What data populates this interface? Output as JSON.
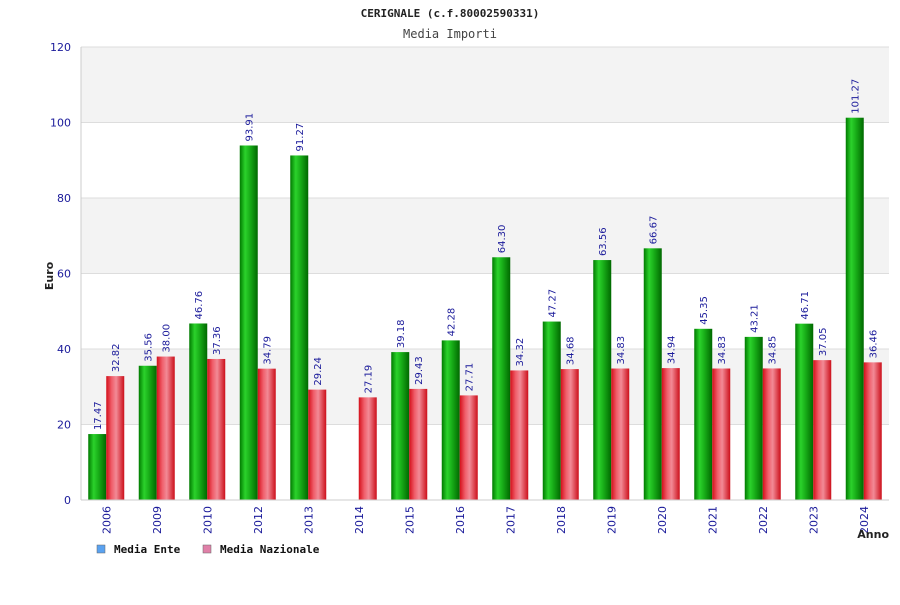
{
  "chart_data": {
    "type": "bar",
    "title": "CERIGNALE (c.f.80002590331)",
    "subtitle": "Media Importi",
    "xlabel": "Anno",
    "ylabel": "Euro",
    "ylim": [
      0,
      120
    ],
    "yticks": [
      0,
      20,
      40,
      60,
      80,
      100,
      120
    ],
    "grid": true,
    "legend_position": "bottom-left",
    "categories": [
      "2006",
      "2009",
      "2010",
      "2012",
      "2013",
      "2014",
      "2015",
      "2016",
      "2017",
      "2018",
      "2019",
      "2020",
      "2021",
      "2022",
      "2023",
      "2024"
    ],
    "series": [
      {
        "name": "Media Ente",
        "legend_color": "#5aa2f0",
        "bar_color": "#16b316",
        "values": [
          17.47,
          35.56,
          46.76,
          93.91,
          91.27,
          null,
          39.18,
          42.28,
          64.3,
          47.27,
          63.56,
          66.67,
          45.35,
          43.21,
          46.71,
          101.27
        ],
        "labels": [
          "17.47",
          "35.56",
          "46.76",
          "93.91",
          "91.27",
          null,
          "39.18",
          "42.28",
          "64.30",
          "47.27",
          "63.56",
          "66.67",
          "45.35",
          "43.21",
          "46.71",
          "101.27"
        ]
      },
      {
        "name": "Media Nazionale",
        "legend_color": "#e080a8",
        "bar_color": "#e0202c",
        "values": [
          32.82,
          38.0,
          37.36,
          34.79,
          29.24,
          27.19,
          29.43,
          27.71,
          34.32,
          34.68,
          34.83,
          34.94,
          34.83,
          34.85,
          37.05,
          36.46
        ],
        "labels": [
          "32.82",
          "38.00",
          "37.36",
          "34.79",
          "29.24",
          "27.19",
          "29.43",
          "27.71",
          "34.32",
          "34.68",
          "34.83",
          "34.94",
          "34.83",
          "34.85",
          "37.05",
          "36.46"
        ]
      }
    ]
  }
}
